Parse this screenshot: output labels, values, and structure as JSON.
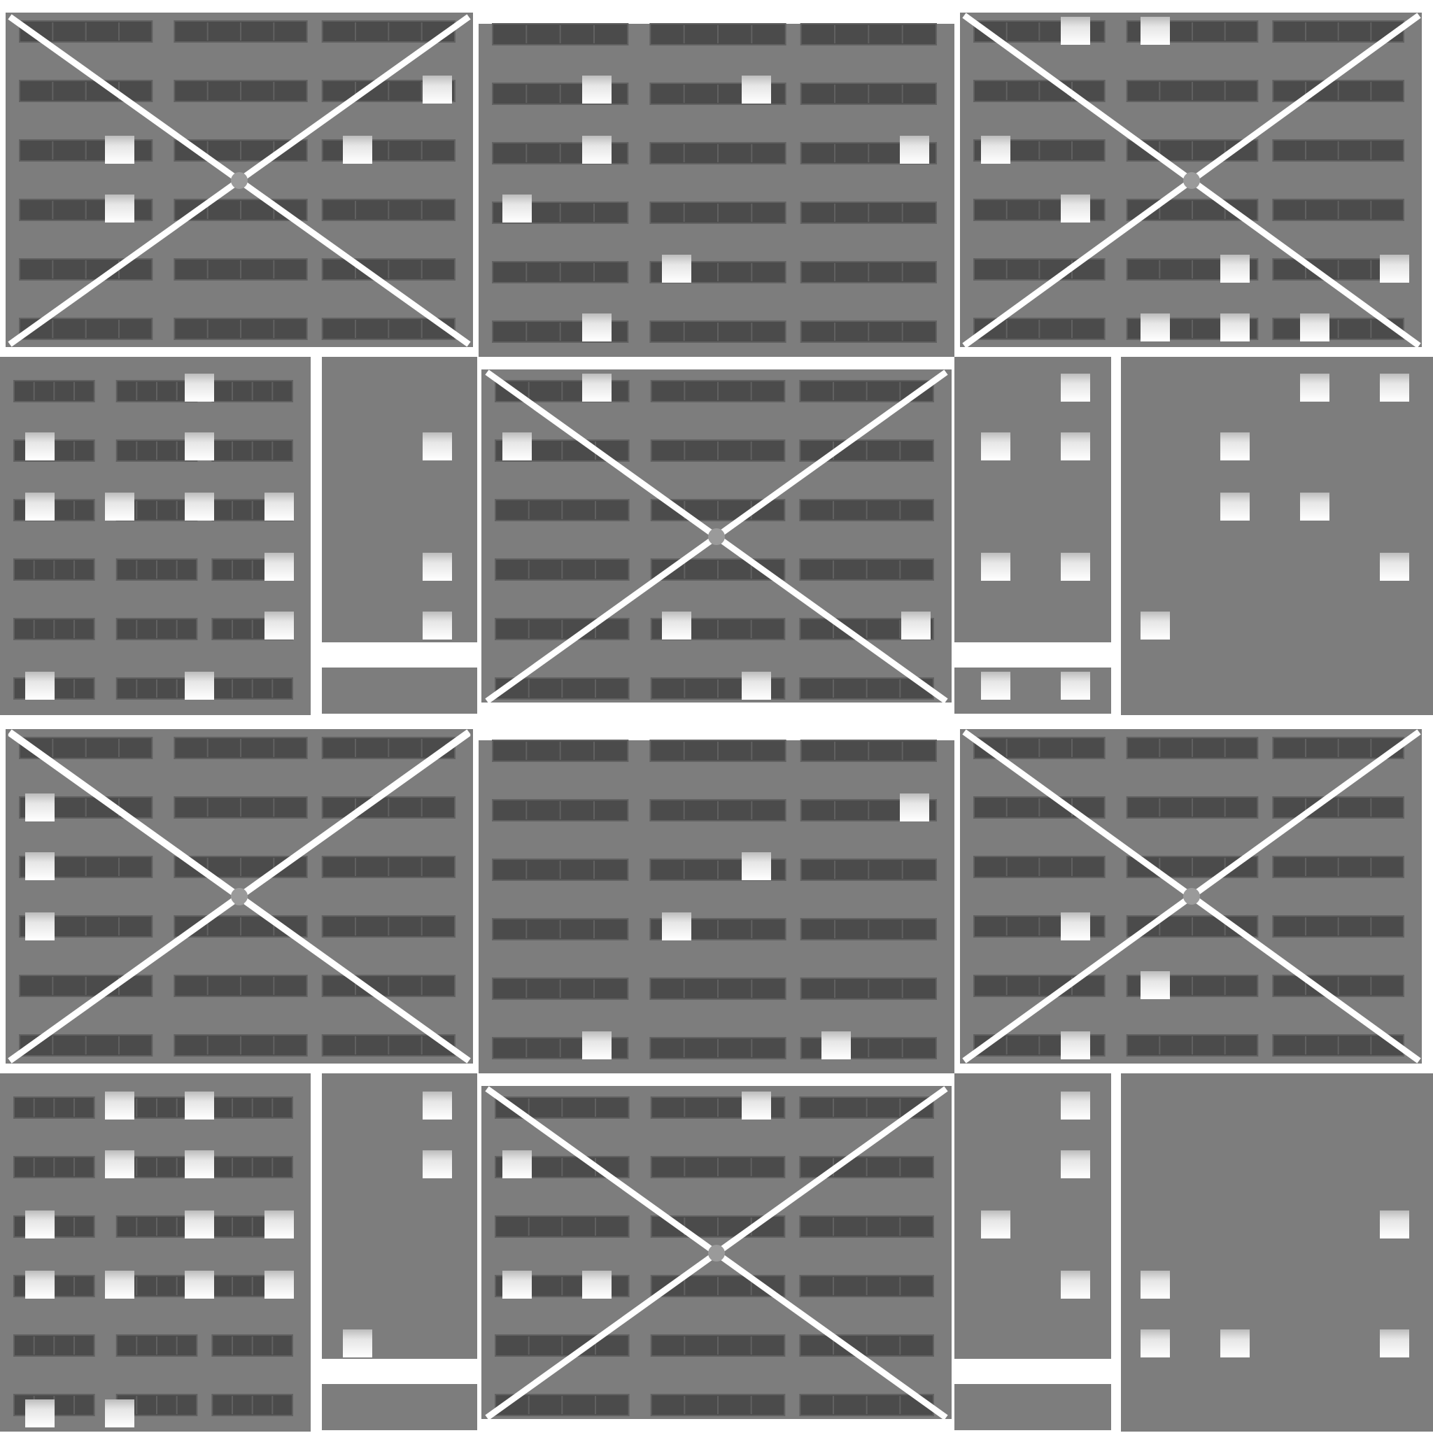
{
  "palette": {
    "background": "#ffffff",
    "panel": "#7d7d7d",
    "window_band": "#4b4b4b",
    "band_outline": "#616161",
    "light_top": "#e9e9e9",
    "light_bottom": "#ffffff",
    "brace": "#ffffff"
  },
  "pattern": {
    "description_visible_text": "",
    "tiles": "2x2 repeat",
    "bays_per_tile": [
      "wide-braced",
      "wide-plain",
      "wide-braced",
      "narrow-pair",
      "wide-braced",
      "narrow-pair"
    ]
  }
}
